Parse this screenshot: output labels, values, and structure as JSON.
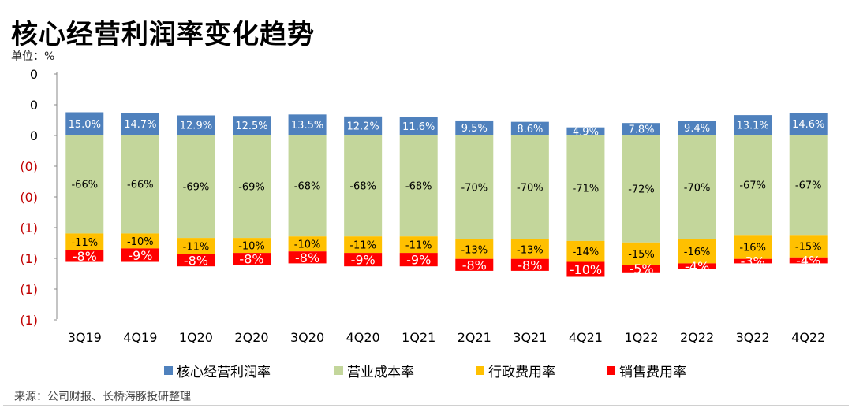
{
  "header": {
    "title": "核心经营利润率变化趋势",
    "unit": "单位：%"
  },
  "footer": {
    "source": "来源：公司财报、长桥海豚投研整理"
  },
  "colors": {
    "core": "#4f81bd",
    "cost": "#c3d69b",
    "admin": "#ffc000",
    "sales": "#ff0000",
    "negative_tick": "#c00000"
  },
  "chart_data": {
    "type": "stacked-bar",
    "title": "核心经营利润率变化趋势",
    "ylabel": "单位：%",
    "y_tick_labels": [
      "0",
      "0",
      "0",
      "(0)",
      "(0)",
      "(1)",
      "(1)",
      "(1)",
      "(1)"
    ],
    "categories": [
      "3Q19",
      "4Q19",
      "1Q20",
      "2Q20",
      "3Q20",
      "4Q20",
      "1Q21",
      "2Q21",
      "3Q21",
      "4Q21",
      "1Q22",
      "2Q22",
      "3Q22",
      "4Q22"
    ],
    "series": [
      {
        "name": "核心经营利润率",
        "color": "#4f81bd",
        "values": [
          15.0,
          14.7,
          12.9,
          12.5,
          13.5,
          12.2,
          11.6,
          9.5,
          8.6,
          4.9,
          7.8,
          9.4,
          13.1,
          14.6
        ],
        "labels": [
          "15.0%",
          "14.7%",
          "12.9%",
          "12.5%",
          "13.5%",
          "12.2%",
          "11.6%",
          "9.5%",
          "8.6%",
          "4.9%",
          "7.8%",
          "9.4%",
          "13.1%",
          "14.6%"
        ]
      },
      {
        "name": "营业成本率",
        "color": "#c3d69b",
        "values": [
          -66,
          -66,
          -69,
          -69,
          -68,
          -68,
          -68,
          -70,
          -70,
          -71,
          -72,
          -70,
          -67,
          -67
        ],
        "labels": [
          "-66%",
          "-66%",
          "-69%",
          "-69%",
          "-68%",
          "-68%",
          "-68%",
          "-70%",
          "-70%",
          "-71%",
          "-72%",
          "-70%",
          "-67%",
          "-67%"
        ]
      },
      {
        "name": "行政费用率",
        "color": "#ffc000",
        "values": [
          -11,
          -10,
          -11,
          -10,
          -10,
          -11,
          -11,
          -13,
          -13,
          -14,
          -15,
          -16,
          -16,
          -15
        ],
        "labels": [
          "-11%",
          "-10%",
          "-11%",
          "-10%",
          "-10%",
          "-11%",
          "-11%",
          "-13%",
          "-13%",
          "-14%",
          "-15%",
          "-16%",
          "-16%",
          "-15%"
        ]
      },
      {
        "name": "销售费用率",
        "color": "#ff0000",
        "values": [
          -8,
          -9,
          -8,
          -8,
          -8,
          -9,
          -9,
          -8,
          -8,
          -10,
          -5,
          -4,
          -3,
          -4
        ],
        "labels": [
          "-8%",
          "-9%",
          "-8%",
          "-8%",
          "-8%",
          "-9%",
          "-9%",
          "-8%",
          "-8%",
          "-10%",
          "-5%",
          "-4%",
          "-3%",
          "-4%"
        ]
      }
    ],
    "legend": [
      "核心经营利润率",
      "营业成本率",
      "行政费用率",
      "销售费用率"
    ],
    "legend_position": "bottom",
    "grid": false
  }
}
